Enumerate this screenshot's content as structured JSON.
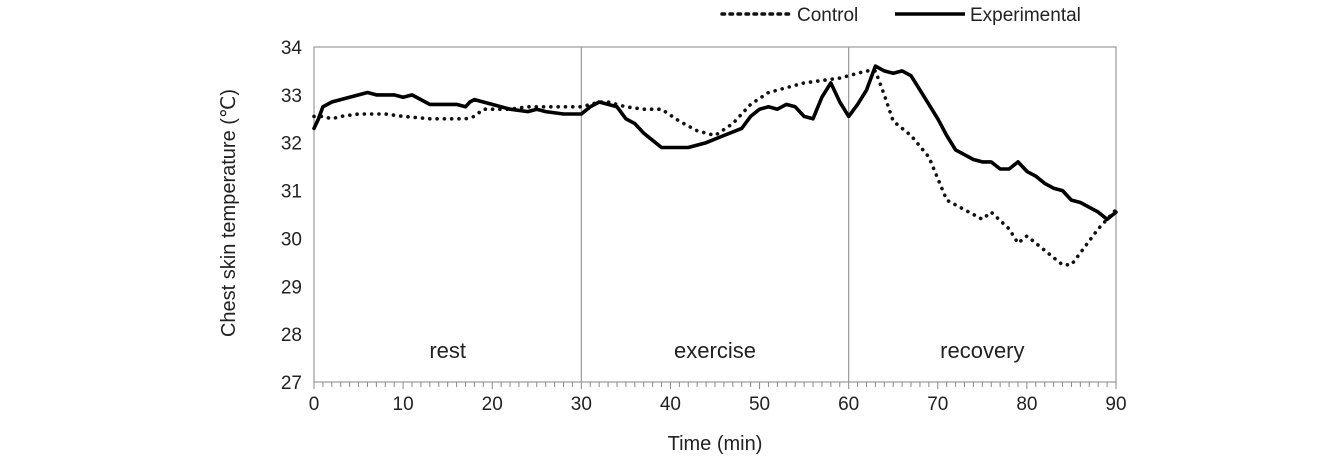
{
  "chart_data": {
    "type": "line",
    "title": "",
    "xlabel": "Time (min)",
    "ylabel": "Chest skin temperature (℃)",
    "xlim": [
      0,
      90
    ],
    "ylim": [
      27,
      34
    ],
    "x_ticks": [
      "0",
      "10",
      "20",
      "30",
      "40",
      "50",
      "60",
      "70",
      "80",
      "90"
    ],
    "y_ticks": [
      "27",
      "28",
      "29",
      "30",
      "31",
      "32",
      "33",
      "34"
    ],
    "grid": false,
    "legend_position": "top-right",
    "phase_dividers": [
      30,
      60
    ],
    "phases": [
      {
        "label": "rest",
        "center": 15
      },
      {
        "label": "exercise",
        "center": 45
      },
      {
        "label": "recovery",
        "center": 75
      }
    ],
    "series": [
      {
        "name": "Control",
        "style": "dotted",
        "color": "#111111",
        "x": [
          0,
          1,
          2,
          3,
          5,
          8,
          10,
          13,
          15,
          17,
          18,
          19,
          20,
          22,
          24,
          26,
          28,
          30,
          31,
          32,
          33,
          34,
          35,
          37,
          39,
          41,
          43,
          45,
          47,
          49,
          51,
          53,
          55,
          57,
          59,
          61,
          62,
          63,
          64,
          65,
          67,
          69,
          70,
          71,
          73,
          75,
          76,
          78,
          79,
          80,
          82,
          84,
          85,
          86,
          88,
          90
        ],
        "y": [
          32.55,
          32.55,
          32.5,
          32.55,
          32.6,
          32.6,
          32.55,
          32.5,
          32.5,
          32.5,
          32.55,
          32.7,
          32.7,
          32.7,
          32.75,
          32.75,
          32.75,
          32.75,
          32.8,
          32.85,
          32.85,
          32.8,
          32.75,
          32.7,
          32.7,
          32.45,
          32.25,
          32.15,
          32.4,
          32.8,
          33.05,
          33.15,
          33.25,
          33.3,
          33.35,
          33.45,
          33.5,
          33.5,
          33.0,
          32.45,
          32.15,
          31.7,
          31.25,
          30.8,
          30.6,
          30.4,
          30.55,
          30.2,
          29.9,
          30.05,
          29.75,
          29.45,
          29.45,
          29.7,
          30.2,
          30.6
        ]
      },
      {
        "name": "Experimental",
        "style": "solid",
        "color": "#000000",
        "x": [
          0,
          0.5,
          1,
          2,
          3,
          4,
          5,
          6,
          7,
          8,
          9,
          10,
          11,
          12,
          13,
          14,
          15,
          16,
          17,
          17.5,
          18,
          19,
          20,
          22,
          24,
          25,
          26,
          28,
          30,
          31,
          32,
          33,
          34,
          35,
          36,
          37,
          38,
          39,
          40,
          42,
          44,
          46,
          48,
          49,
          50,
          51,
          52,
          53,
          54,
          55,
          56,
          57,
          58,
          59,
          60,
          61,
          62,
          63,
          64,
          65,
          66,
          67,
          68,
          69,
          70,
          71,
          72,
          73,
          74,
          75,
          76,
          77,
          78,
          79,
          80,
          81,
          82,
          83,
          84,
          85,
          86,
          87,
          88,
          89,
          90
        ],
        "y": [
          32.3,
          32.5,
          32.75,
          32.85,
          32.9,
          32.95,
          33.0,
          33.05,
          33.0,
          33.0,
          33.0,
          32.95,
          33.0,
          32.9,
          32.8,
          32.8,
          32.8,
          32.8,
          32.75,
          32.85,
          32.9,
          32.85,
          32.8,
          32.7,
          32.65,
          32.7,
          32.65,
          32.6,
          32.6,
          32.75,
          32.85,
          32.8,
          32.75,
          32.5,
          32.4,
          32.2,
          32.05,
          31.9,
          31.9,
          31.9,
          32.0,
          32.15,
          32.3,
          32.55,
          32.7,
          32.75,
          32.7,
          32.8,
          32.75,
          32.55,
          32.5,
          32.95,
          33.25,
          32.85,
          32.55,
          32.8,
          33.1,
          33.6,
          33.5,
          33.45,
          33.5,
          33.4,
          33.1,
          32.8,
          32.5,
          32.15,
          31.85,
          31.75,
          31.65,
          31.6,
          31.6,
          31.45,
          31.45,
          31.6,
          31.4,
          31.3,
          31.15,
          31.05,
          31.0,
          30.8,
          30.75,
          30.65,
          30.55,
          30.4,
          30.55
        ]
      }
    ]
  }
}
